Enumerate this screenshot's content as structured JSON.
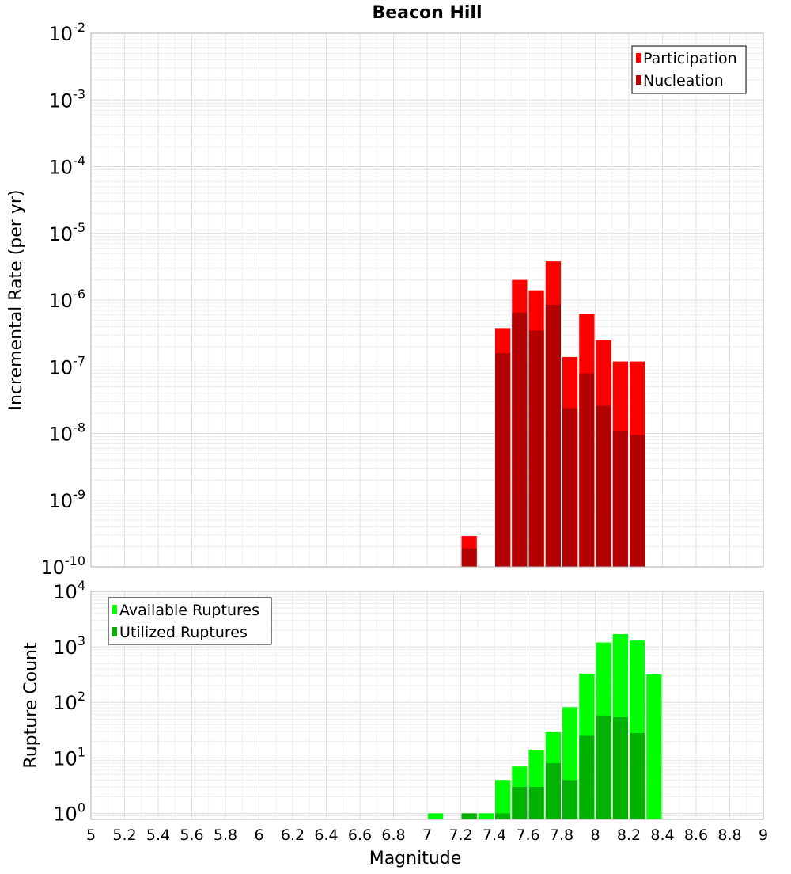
{
  "chart_data": [
    {
      "type": "bar",
      "title": "Beacon Hill",
      "ylabel": "Incremental Rate (per yr)",
      "xlabel": "",
      "y_scale": "log",
      "ylim": [
        1e-10,
        0.01
      ],
      "xlim": [
        5,
        9
      ],
      "bar_width": 0.1,
      "grid": true,
      "legend_position": "top-right",
      "y_tick_labels": [
        {
          "base": "10",
          "exp": "-2",
          "value": 0.01
        },
        {
          "base": "10",
          "exp": "-3",
          "value": 0.001
        },
        {
          "base": "10",
          "exp": "-4",
          "value": 0.0001
        },
        {
          "base": "10",
          "exp": "-5",
          "value": 1e-05
        },
        {
          "base": "10",
          "exp": "-6",
          "value": 1e-06
        },
        {
          "base": "10",
          "exp": "-7",
          "value": 1e-07
        },
        {
          "base": "10",
          "exp": "-8",
          "value": 1e-08
        },
        {
          "base": "10",
          "exp": "-9",
          "value": 1e-09
        },
        {
          "base": "10",
          "exp": "-10",
          "value": 1e-10
        }
      ],
      "series": [
        {
          "name": "Participation",
          "color": "#ff0000",
          "x": [
            7.25,
            7.45,
            7.55,
            7.65,
            7.75,
            7.85,
            7.95,
            8.05,
            8.15,
            8.25
          ],
          "values": [
            2.9e-10,
            3.8e-07,
            2e-06,
            1.4e-06,
            3.8e-06,
            1.4e-07,
            6.2e-07,
            2.5e-07,
            1.2e-07,
            1.2e-07
          ]
        },
        {
          "name": "Nucleation",
          "color": "#b30000",
          "x": [
            7.25,
            7.45,
            7.55,
            7.65,
            7.75,
            7.85,
            7.95,
            8.05,
            8.15,
            8.25
          ],
          "values": [
            1.9e-10,
            1.6e-07,
            6.5e-07,
            3.5e-07,
            8.5e-07,
            2.4e-08,
            8e-08,
            2.6e-08,
            1.1e-08,
            9.5e-09
          ]
        }
      ]
    },
    {
      "type": "bar",
      "title": "",
      "ylabel": "Rupture Count",
      "xlabel": "Magnitude",
      "y_scale": "log",
      "ylim": [
        0.78,
        10000
      ],
      "xlim": [
        5,
        9
      ],
      "bar_width": 0.1,
      "grid": true,
      "legend_position": "top-left",
      "y_tick_labels": [
        {
          "base": "10",
          "exp": "4",
          "value": 10000
        },
        {
          "base": "10",
          "exp": "3",
          "value": 1000
        },
        {
          "base": "10",
          "exp": "2",
          "value": 100
        },
        {
          "base": "10",
          "exp": "1",
          "value": 10
        },
        {
          "base": "10",
          "exp": "0",
          "value": 1
        }
      ],
      "x_tick_labels": [
        "5",
        "5.2",
        "5.4",
        "5.6",
        "5.8",
        "6",
        "6.2",
        "6.4",
        "6.6",
        "6.8",
        "7",
        "7.2",
        "7.4",
        "7.6",
        "7.8",
        "8",
        "8.2",
        "8.4",
        "8.6",
        "8.8",
        "9"
      ],
      "series": [
        {
          "name": "Available Ruptures",
          "color": "#00ff00",
          "x": [
            7.05,
            7.25,
            7.35,
            7.45,
            7.55,
            7.65,
            7.75,
            7.85,
            7.95,
            8.05,
            8.15,
            8.25,
            8.35
          ],
          "values": [
            1,
            1,
            1,
            4,
            7,
            14,
            29,
            82,
            330,
            1200,
            1700,
            1300,
            320
          ]
        },
        {
          "name": "Utilized Ruptures",
          "color": "#00b300",
          "x": [
            7.25,
            7.45,
            7.55,
            7.65,
            7.75,
            7.85,
            7.95,
            8.05,
            8.15,
            8.25
          ],
          "values": [
            1,
            1,
            3,
            3,
            8,
            4,
            25,
            58,
            54,
            28
          ]
        }
      ]
    }
  ]
}
